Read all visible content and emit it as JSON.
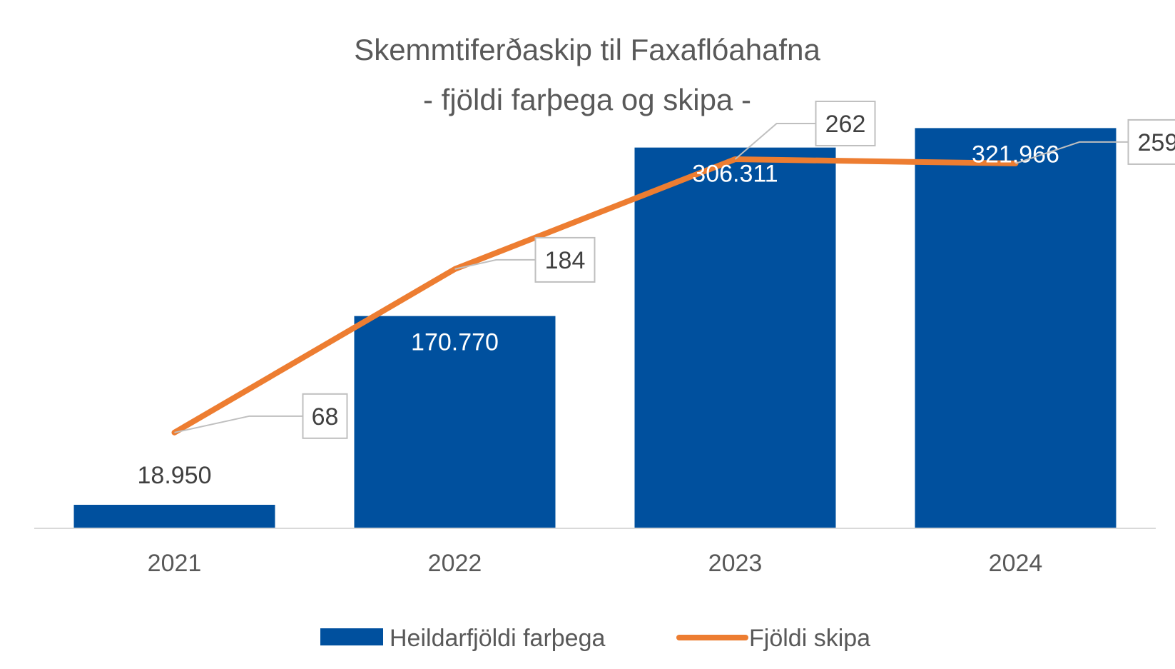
{
  "chart_data": {
    "type": "bar",
    "title": "Skemmtiferðaskip til Faxaflóahafna",
    "subtitle": "- fjöldi farþega og skipa -",
    "categories": [
      "2021",
      "2022",
      "2023",
      "2024"
    ],
    "series": [
      {
        "name": "Heildarfjöldi farþega",
        "type": "bar",
        "values": [
          18950,
          170770,
          306311,
          321966
        ],
        "labels": [
          "18.950",
          "170.770",
          "306.311",
          "321.966"
        ],
        "color": "#00509E"
      },
      {
        "name": "Fjöldi skipa",
        "type": "line",
        "values": [
          68,
          184,
          262,
          259
        ],
        "labels": [
          "68",
          "184",
          "262",
          "259"
        ],
        "color": "#ED7D31"
      }
    ],
    "bar_axis_range": [
      0,
      340000
    ],
    "line_axis_range": [
      0,
      300
    ],
    "grid": false,
    "legend_position": "bottom",
    "bar_label_color_inside": "#ffffff",
    "bar_label_color_outside": "#404040",
    "axis_line_color": "#D9D9D9",
    "callout_border_color": "#BFBFBF"
  }
}
